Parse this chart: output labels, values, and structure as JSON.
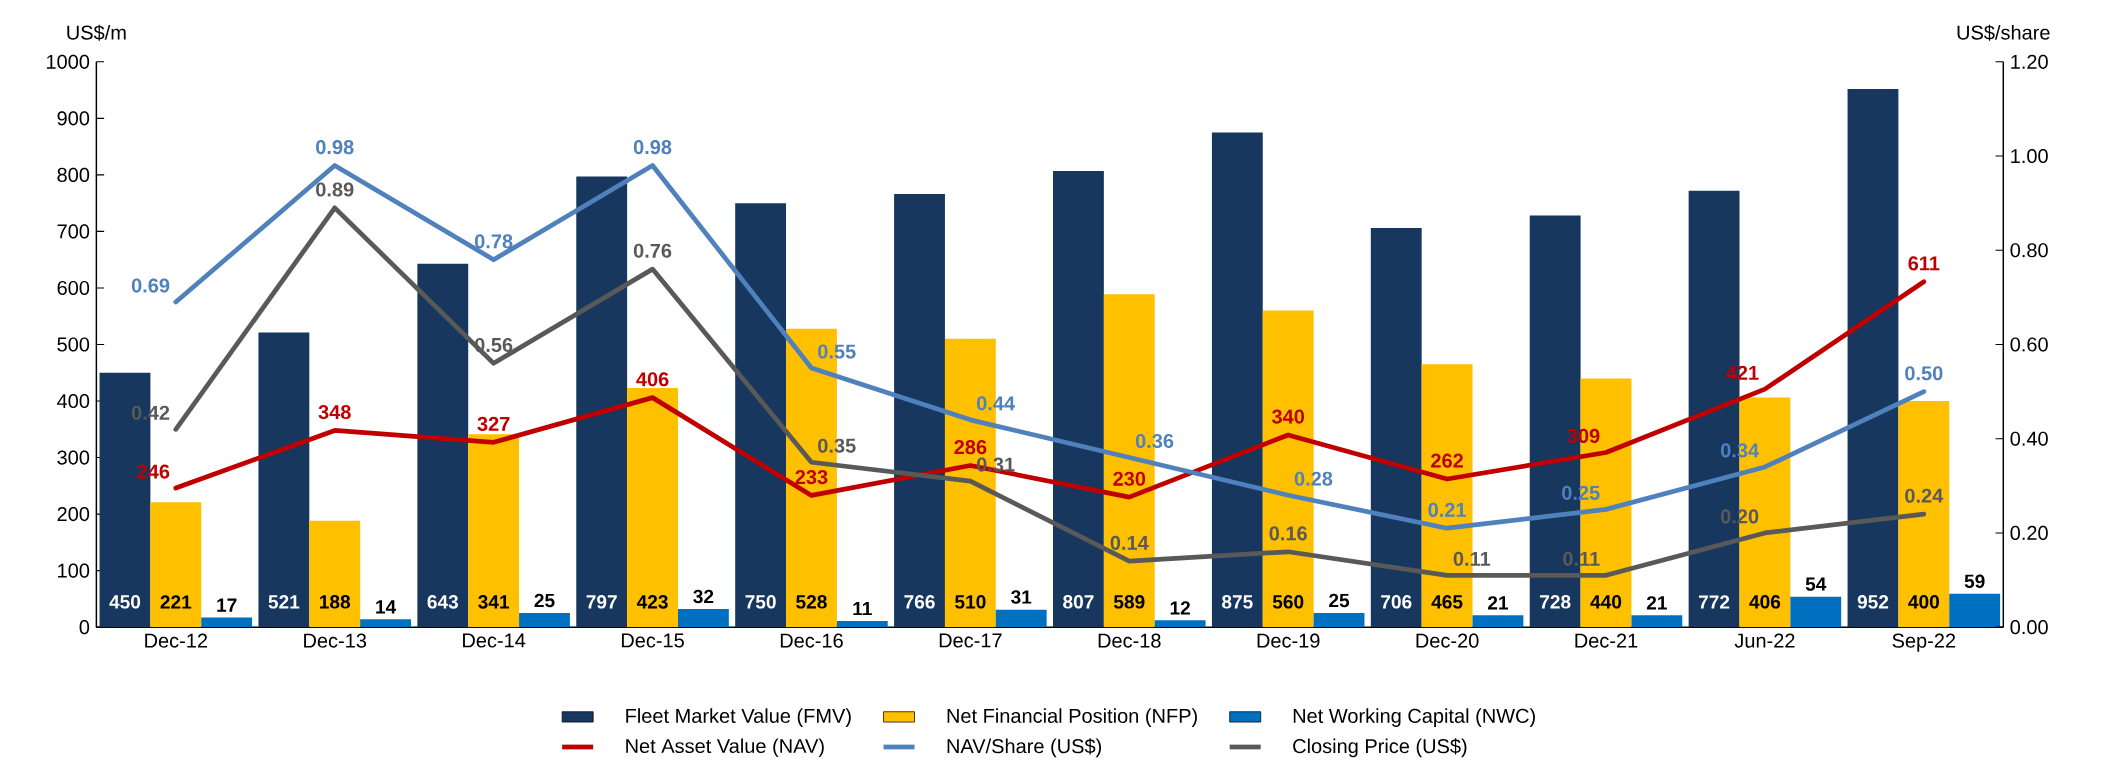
{
  "chart_data": {
    "type": "bar",
    "categories": [
      "Dec-12",
      "Dec-13",
      "Dec-14",
      "Dec-15",
      "Dec-16",
      "Dec-17",
      "Dec-18",
      "Dec-19",
      "Dec-20",
      "Dec-21",
      "Jun-22",
      "Sep-22"
    ],
    "series": [
      {
        "name": "Fleet Market Value (FMV)",
        "type": "bar",
        "color": "#17375e",
        "values": [
          450,
          521,
          643,
          797,
          750,
          766,
          807,
          875,
          706,
          728,
          772,
          952
        ]
      },
      {
        "name": "Net Financial Position (NFP)",
        "type": "bar",
        "color": "#ffc000",
        "values": [
          221,
          188,
          341,
          423,
          528,
          510,
          589,
          560,
          465,
          440,
          406,
          400
        ]
      },
      {
        "name": "Net Working Capital (NWC)",
        "type": "bar",
        "color": "#0070c0",
        "values": [
          17,
          14,
          25,
          32,
          11,
          31,
          12,
          25,
          21,
          21,
          54,
          59
        ]
      },
      {
        "name": "Net Asset Value (NAV)",
        "type": "line",
        "color": "#c00000",
        "values": [
          246,
          348,
          327,
          406,
          233,
          286,
          230,
          340,
          262,
          309,
          421,
          611
        ]
      },
      {
        "name": "NAV/Share (US$)",
        "type": "line",
        "axis": "y2",
        "color": "#4f81bd",
        "values": [
          0.69,
          0.98,
          0.78,
          0.98,
          0.55,
          0.44,
          0.36,
          0.28,
          0.21,
          0.25,
          0.34,
          0.5
        ],
        "value_labels": [
          "0.69",
          "0.98",
          "0.78",
          "0.98",
          "0.55",
          "0.44",
          "0.36",
          "0.28",
          "0.21",
          "0.25",
          "0.34",
          "0.50"
        ]
      },
      {
        "name": "Closing Price (US$)",
        "type": "line",
        "axis": "y2",
        "color": "#595959",
        "values": [
          0.42,
          0.89,
          0.56,
          0.76,
          0.35,
          0.31,
          0.14,
          0.16,
          0.11,
          0.11,
          0.2,
          0.24
        ],
        "value_labels": [
          "0.42",
          "0.89",
          "0.56",
          "0.76",
          "0.35",
          "0.31",
          "0.14",
          "0.16",
          "0.11",
          "0.11",
          "0.20",
          "0.24"
        ]
      }
    ],
    "ylabel": "US$/m",
    "y2label": "US$/share",
    "ylim": [
      0,
      1000
    ],
    "yticks": [
      0,
      100,
      200,
      300,
      400,
      500,
      600,
      700,
      800,
      900,
      1000
    ],
    "y2lim": [
      0,
      1.2
    ],
    "y2ticks": [
      {
        "value": 0,
        "label": "0.00"
      },
      {
        "value": 0.2,
        "label": "0.20"
      },
      {
        "value": 0.4,
        "label": "0.40"
      },
      {
        "value": 0.6,
        "label": "0.60"
      },
      {
        "value": 0.8,
        "label": "0.80"
      },
      {
        "value": 1.0,
        "label": "1.00"
      },
      {
        "value": 1.2,
        "label": "1.20"
      }
    ],
    "data_labels": true,
    "legend": "bottom",
    "marker": "none",
    "line_style": "solid"
  }
}
